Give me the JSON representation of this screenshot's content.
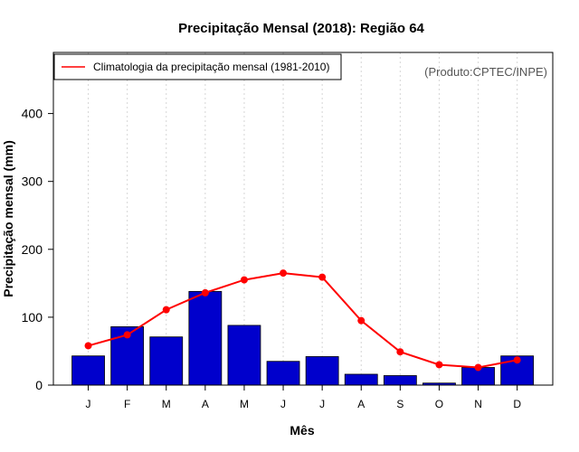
{
  "chart_data": {
    "type": "bar",
    "title": "Precipitação Mensal (2018): Região 64",
    "xlabel": "Mês",
    "ylabel": "Precipitação mensal (mm)",
    "ylim": [
      0,
      490
    ],
    "yticks": [
      0,
      100,
      200,
      300,
      400
    ],
    "grid": "vertical-dotted",
    "legend_position": "top-left",
    "credit": "(Produto:CPTEC/INPE)",
    "categories": [
      "J",
      "F",
      "M",
      "A",
      "M",
      "J",
      "J",
      "A",
      "S",
      "O",
      "N",
      "D"
    ],
    "series": [
      {
        "name": "Precipitação mensal 2018",
        "kind": "bar",
        "color": "#0000cc",
        "values": [
          43,
          86,
          71,
          138,
          88,
          35,
          42,
          16,
          14,
          3,
          26,
          43
        ]
      },
      {
        "name": "Climatologia da precipitação mensal (1981-2010)",
        "kind": "line",
        "color": "#ff0000",
        "values": [
          58,
          74,
          111,
          136,
          155,
          165,
          159,
          95,
          49,
          30,
          26,
          37
        ]
      }
    ]
  }
}
